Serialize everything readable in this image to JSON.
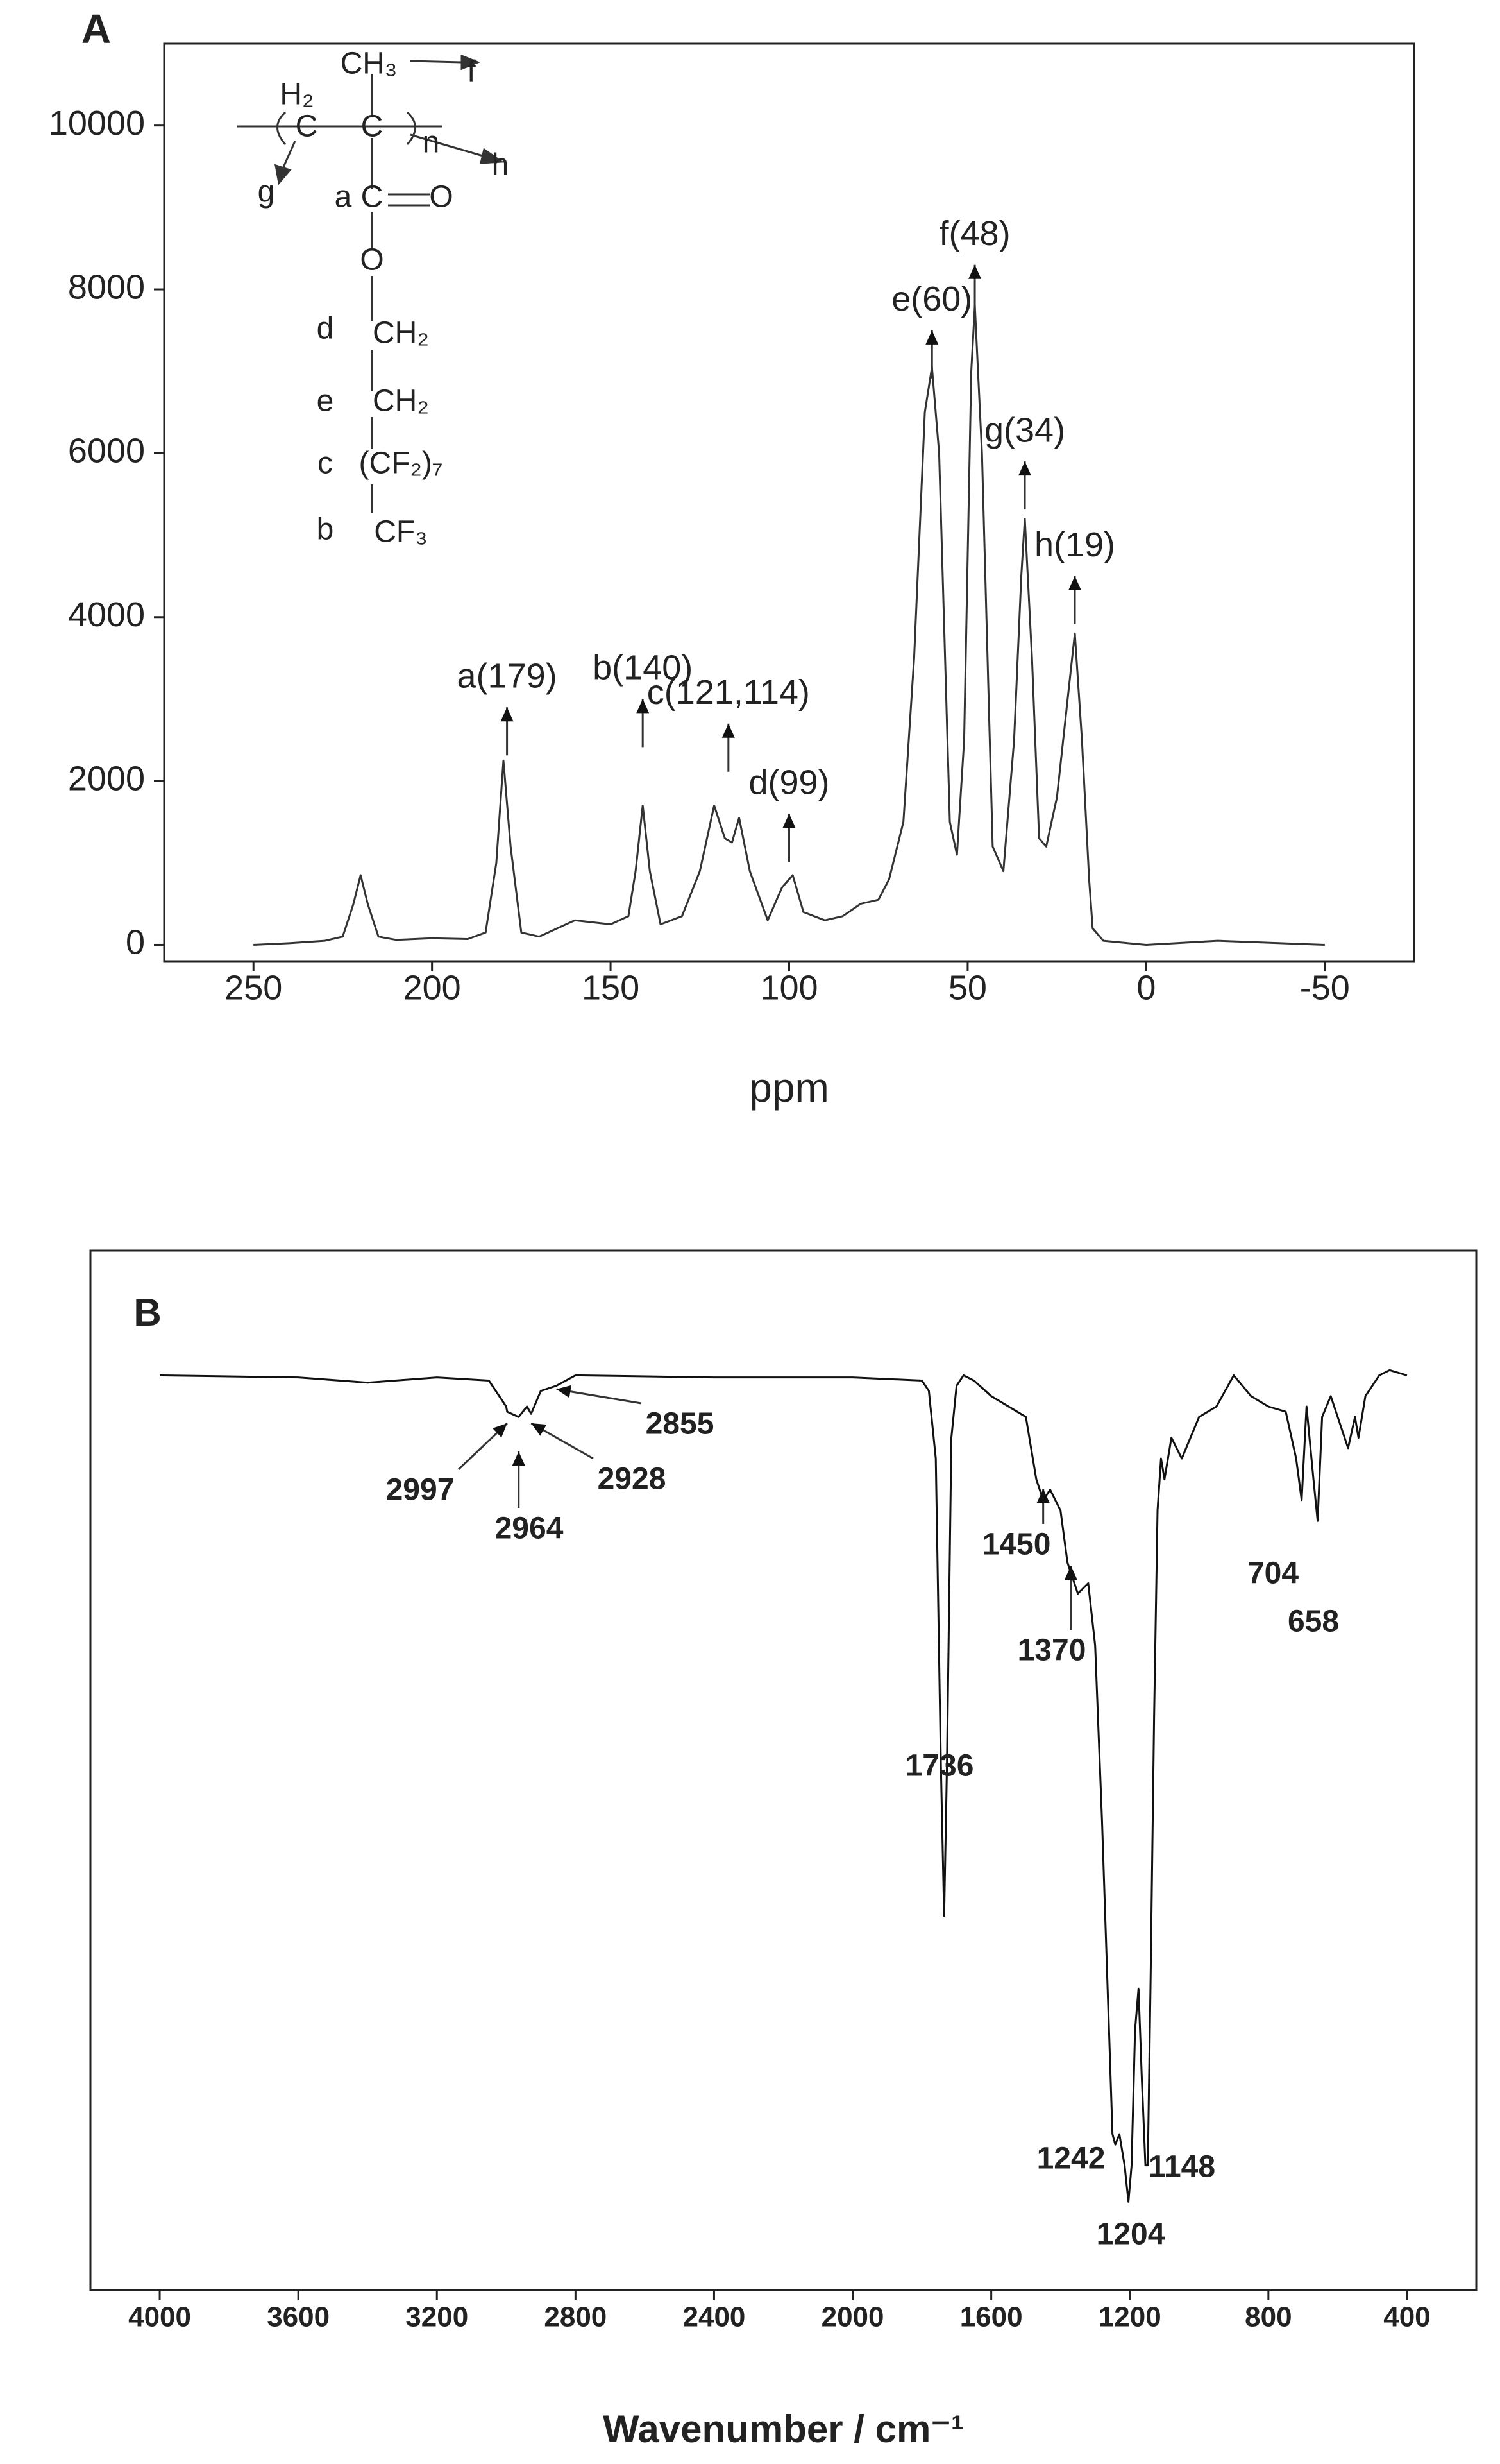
{
  "chart_data": [
    {
      "type": "line",
      "title": "A",
      "xlabel": "ppm",
      "xlim": [
        275,
        -75
      ],
      "ylim": [
        -200,
        11000
      ],
      "xticks": [
        250,
        200,
        150,
        100,
        50,
        0,
        -50
      ],
      "yticks": [
        0,
        2000,
        4000,
        6000,
        8000,
        10000
      ],
      "color": "#333333",
      "x": [
        250,
        240,
        230,
        225,
        222,
        220,
        218,
        215,
        210,
        200,
        190,
        185,
        182,
        180,
        178,
        175,
        170,
        160,
        150,
        145,
        143,
        141,
        139,
        136,
        130,
        125,
        121,
        118,
        116,
        114,
        111,
        106,
        102,
        99,
        96,
        90,
        85,
        80,
        75,
        72,
        68,
        65,
        62,
        60,
        58,
        55,
        53,
        51,
        49,
        48,
        46,
        43,
        40,
        37,
        35,
        34,
        32,
        30,
        28,
        25,
        22,
        20,
        18,
        16,
        15,
        12,
        0,
        -20,
        -50
      ],
      "values": [
        0,
        20,
        50,
        100,
        500,
        850,
        500,
        100,
        60,
        80,
        70,
        150,
        1000,
        2250,
        1200,
        150,
        100,
        300,
        250,
        350,
        900,
        1700,
        900,
        250,
        350,
        900,
        1700,
        1300,
        1250,
        1550,
        900,
        300,
        700,
        850,
        400,
        300,
        350,
        500,
        550,
        800,
        1500,
        3500,
        6500,
        7050,
        6000,
        1500,
        1100,
        2500,
        7000,
        7800,
        6000,
        1200,
        900,
        2500,
        4500,
        5200,
        3500,
        1300,
        1200,
        1800,
        3000,
        3800,
        2500,
        800,
        200,
        50,
        0,
        50,
        0
      ],
      "annotations": [
        {
          "text": "a(179)",
          "x": 179,
          "y": 2900
        },
        {
          "text": "b(140)",
          "x": 141,
          "y": 3000
        },
        {
          "text": "c(121,114)",
          "x": 117,
          "y": 2700
        },
        {
          "text": "d(99)",
          "x": 100,
          "y": 1600
        },
        {
          "text": "e(60)",
          "x": 60,
          "y": 7500
        },
        {
          "text": "f(48)",
          "x": 48,
          "y": 8300
        },
        {
          "text": "g(34)",
          "x": 34,
          "y": 5900
        },
        {
          "text": "h(19)",
          "x": 20,
          "y": 4500
        }
      ],
      "inset_labels": [
        "CH₃",
        "f",
        "H₂",
        "C",
        "C",
        "n",
        "h",
        "g",
        "a",
        "C",
        "O",
        "O",
        "d",
        "CH₂",
        "e",
        "CH₂",
        "c",
        "(CF₂)₇",
        "b",
        "CF₃"
      ]
    },
    {
      "type": "line",
      "title": "B",
      "xlabel": "Wavenumber / cm⁻¹",
      "xlim": [
        4200,
        200
      ],
      "ylim": [
        0,
        100
      ],
      "xticks": [
        4000,
        3600,
        3200,
        2800,
        2400,
        2000,
        1600,
        1200,
        800,
        400
      ],
      "color": "#111111",
      "x": [
        4000,
        3600,
        3400,
        3200,
        3050,
        3000,
        2997,
        2964,
        2940,
        2928,
        2900,
        2855,
        2800,
        2400,
        2000,
        1800,
        1780,
        1760,
        1745,
        1736,
        1728,
        1715,
        1700,
        1680,
        1650,
        1600,
        1500,
        1470,
        1450,
        1430,
        1400,
        1380,
        1370,
        1350,
        1320,
        1300,
        1280,
        1260,
        1250,
        1242,
        1230,
        1215,
        1204,
        1195,
        1185,
        1175,
        1165,
        1155,
        1148,
        1140,
        1130,
        1120,
        1110,
        1100,
        1080,
        1050,
        1000,
        950,
        900,
        850,
        800,
        750,
        720,
        704,
        690,
        670,
        658,
        645,
        620,
        600,
        570,
        550,
        540,
        520,
        480,
        450,
        400
      ],
      "values": [
        88,
        87.8,
        87.3,
        87.8,
        87.5,
        85,
        84.5,
        84,
        85,
        84.3,
        86.5,
        87,
        88,
        87.8,
        87.8,
        87.5,
        86.5,
        80,
        50,
        36,
        50,
        82,
        87,
        88,
        87.5,
        86,
        84,
        78,
        76,
        77,
        75,
        70,
        69,
        67,
        68,
        62,
        45,
        25,
        15,
        14,
        15,
        12,
        8.5,
        12,
        25,
        29,
        20,
        12,
        12,
        30,
        55,
        75,
        80,
        78,
        82,
        80,
        84,
        85,
        88,
        86,
        85,
        84.5,
        80,
        76,
        85,
        78,
        74,
        84,
        86,
        84,
        81,
        84,
        82,
        86,
        88,
        88.5,
        88
      ],
      "annotations": [
        {
          "text": "2997",
          "x": 2997
        },
        {
          "text": "2964",
          "x": 2964
        },
        {
          "text": "2928",
          "x": 2928
        },
        {
          "text": "2855",
          "x": 2855
        },
        {
          "text": "1450",
          "x": 1450
        },
        {
          "text": "1370",
          "x": 1370
        },
        {
          "text": "1736",
          "x": 1736
        },
        {
          "text": "1242",
          "x": 1242
        },
        {
          "text": "1148",
          "x": 1148
        },
        {
          "text": "1204",
          "x": 1204
        },
        {
          "text": "704",
          "x": 704
        },
        {
          "text": "658",
          "x": 658
        }
      ]
    }
  ]
}
